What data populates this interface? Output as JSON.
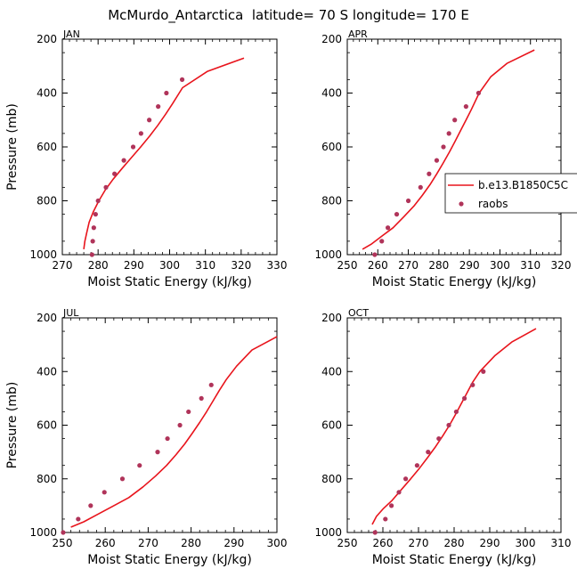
{
  "figure_title": "McMurdo_Antarctica  latitude= 70 S longitude= 170 E",
  "colors": {
    "model": "#e8141c",
    "obs": "#b0345a"
  },
  "legend": {
    "model_label": "b.e13.B1850C5C",
    "obs_label": "raobs"
  },
  "chart_data": [
    {
      "type": "line",
      "title": "JAN",
      "xlabel": "Moist Static Energy (kJ/kg)",
      "ylabel": "Pressure (mb)",
      "xlim": [
        270,
        330
      ],
      "ylim": [
        1000,
        200
      ],
      "xticks": [
        270,
        280,
        290,
        300,
        310,
        320,
        330
      ],
      "yticks": [
        200,
        400,
        600,
        800,
        1000
      ],
      "series": [
        {
          "name": "b.e13.B1850C5C",
          "kind": "line",
          "x": [
            276,
            276.3,
            276.8,
            277.5,
            278.7,
            280.2,
            282.0,
            284.2,
            286.7,
            289.3,
            291.9,
            294.4,
            296.7,
            298.8,
            300.8,
            303.6,
            310.5,
            320.8
          ],
          "y": [
            980,
            950,
            920,
            880,
            840,
            800,
            760,
            720,
            680,
            640,
            600,
            560,
            520,
            480,
            440,
            380,
            320,
            270
          ]
        },
        {
          "name": "raobs",
          "kind": "scatter",
          "x": [
            278.3,
            278.5,
            278.8,
            279.3,
            280.0,
            282.2,
            284.6,
            287.2,
            289.8,
            292.0,
            294.3,
            296.8,
            299.1,
            303.5
          ],
          "y": [
            1000,
            950,
            900,
            850,
            800,
            750,
            700,
            650,
            600,
            550,
            500,
            450,
            400,
            350
          ]
        }
      ]
    },
    {
      "type": "line",
      "title": "APR",
      "xlabel": "Moist Static Energy (kJ/kg)",
      "ylabel": "Pressure (mb)",
      "xlim": [
        250,
        320
      ],
      "ylim": [
        1000,
        200
      ],
      "xticks": [
        250,
        260,
        270,
        280,
        290,
        300,
        310,
        320
      ],
      "yticks": [
        200,
        400,
        600,
        800,
        1000
      ],
      "series": [
        {
          "name": "b.e13.B1850C5C",
          "kind": "line",
          "x": [
            255,
            258,
            261.5,
            265,
            268.5,
            271.8,
            274.6,
            277.1,
            279.3,
            281.4,
            283.4,
            285.3,
            287.1,
            288.9,
            290.7,
            293.2,
            297.0,
            302.3,
            311.3
          ],
          "y": [
            980,
            960,
            930,
            900,
            860,
            820,
            780,
            740,
            700,
            660,
            620,
            580,
            540,
            500,
            460,
            400,
            340,
            290,
            240
          ]
        },
        {
          "name": "raobs",
          "kind": "scatter",
          "x": [
            259.0,
            261.3,
            263.3,
            266.2,
            270.0,
            274.0,
            276.8,
            279.3,
            281.5,
            283.3,
            285.2,
            288.9,
            293.0
          ],
          "y": [
            1000,
            950,
            900,
            850,
            800,
            750,
            700,
            650,
            600,
            550,
            500,
            450,
            400
          ]
        }
      ]
    },
    {
      "type": "line",
      "title": "JUL",
      "xlabel": "Moist Static Energy (kJ/kg)",
      "ylabel": "Pressure (mb)",
      "xlim": [
        250,
        300
      ],
      "ylim": [
        1000,
        200
      ],
      "xticks": [
        250,
        260,
        270,
        280,
        290,
        300
      ],
      "yticks": [
        200,
        400,
        600,
        800,
        1000
      ],
      "series": [
        {
          "name": "b.e13.B1850C5C",
          "kind": "line",
          "x": [
            252,
            255,
            258.5,
            262.0,
            265.5,
            268.8,
            271.7,
            274.3,
            276.5,
            278.5,
            280.3,
            282.0,
            283.6,
            285.1,
            286.6,
            288.2,
            290.6,
            294.2,
            300.0
          ],
          "y": [
            980,
            960,
            930,
            900,
            870,
            830,
            790,
            750,
            710,
            670,
            630,
            590,
            550,
            510,
            470,
            430,
            380,
            320,
            270
          ]
        },
        {
          "name": "raobs",
          "kind": "scatter",
          "x": [
            250.2,
            253.7,
            256.6,
            259.8,
            264.0,
            268.0,
            272.2,
            274.5,
            277.4,
            279.4,
            282.4,
            284.7
          ],
          "y": [
            1000,
            950,
            900,
            850,
            800,
            750,
            700,
            650,
            600,
            550,
            500,
            450
          ]
        }
      ]
    },
    {
      "type": "line",
      "title": "OCT",
      "xlabel": "Moist Static Energy (kJ/kg)",
      "ylabel": "Pressure (mb)",
      "xlim": [
        250,
        310
      ],
      "ylim": [
        1000,
        200
      ],
      "xticks": [
        250,
        260,
        270,
        280,
        290,
        300,
        310
      ],
      "yticks": [
        200,
        400,
        600,
        800,
        1000
      ],
      "series": [
        {
          "name": "b.e13.B1850C5C",
          "kind": "line",
          "x": [
            257,
            258.2,
            260.2,
            262.6,
            265.2,
            267.8,
            270.3,
            272.6,
            274.8,
            276.8,
            278.7,
            280.4,
            282.0,
            283.6,
            285.2,
            287.2,
            291.5,
            296.2,
            303.0
          ],
          "y": [
            970,
            940,
            910,
            880,
            840,
            800,
            760,
            720,
            680,
            640,
            600,
            560,
            520,
            480,
            440,
            400,
            340,
            290,
            240
          ]
        },
        {
          "name": "raobs",
          "kind": "scatter",
          "x": [
            257.8,
            260.7,
            262.4,
            264.5,
            266.4,
            269.6,
            272.7,
            275.7,
            278.5,
            280.6,
            282.9,
            285.2,
            288.2
          ],
          "y": [
            1000,
            950,
            900,
            850,
            800,
            750,
            700,
            650,
            600,
            550,
            500,
            450,
            400
          ]
        }
      ]
    }
  ]
}
